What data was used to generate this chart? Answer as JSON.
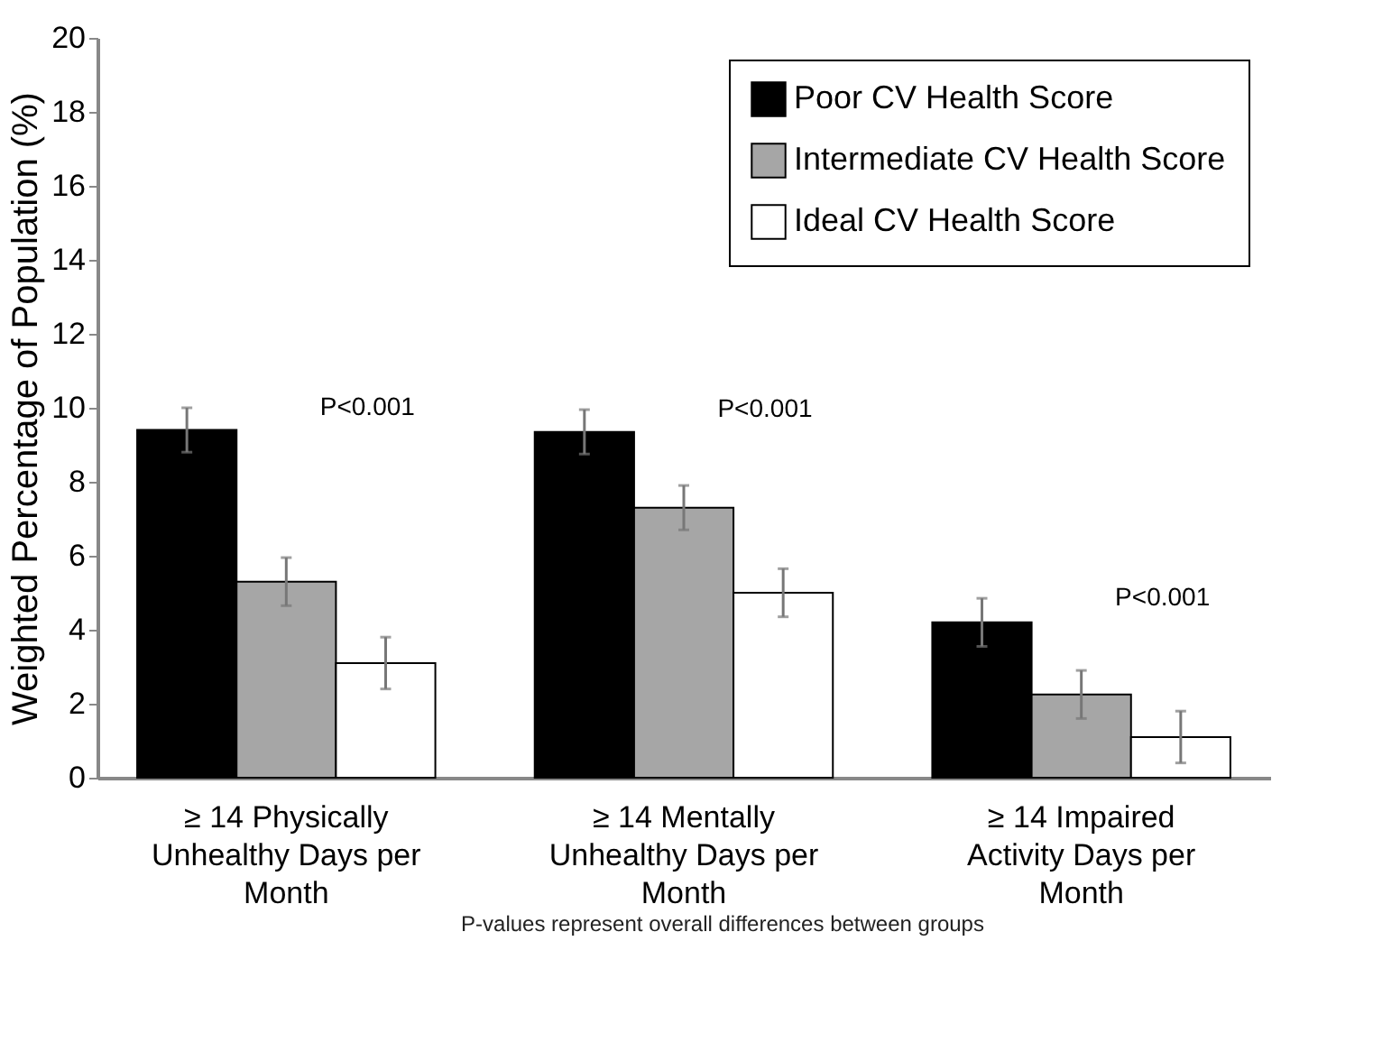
{
  "chart_data": {
    "type": "bar",
    "ylabel": "Weighted Percentage of Population (%)",
    "categories": [
      "≥ 14 Physically Unhealthy Days per Month",
      "≥ 14 Mentally Unhealthy Days per Month",
      "≥ 14 Impaired Activity Days per Month"
    ],
    "series": [
      {
        "name": "Poor CV Health Score",
        "color": "#000000",
        "values": [
          9.4,
          9.35,
          4.2
        ],
        "errors": [
          0.6,
          0.6,
          0.65
        ]
      },
      {
        "name": "Intermediate CV Health Score",
        "color": "#a6a6a6",
        "values": [
          5.3,
          7.3,
          2.25
        ],
        "errors": [
          0.65,
          0.6,
          0.65
        ]
      },
      {
        "name": "Ideal CV Health Score",
        "color": "#ffffff",
        "values": [
          3.1,
          5.0,
          1.1
        ],
        "errors": [
          0.7,
          0.65,
          0.7
        ]
      }
    ],
    "ylim": [
      0,
      20
    ],
    "yticks": [
      0,
      2,
      4,
      6,
      8,
      10,
      12,
      14,
      16,
      18,
      20
    ],
    "grid": false,
    "legend": "top right",
    "annotations": [
      "P<0.001",
      "P<0.001",
      "P<0.001",
      "P-values represent overall differences between groups"
    ]
  }
}
